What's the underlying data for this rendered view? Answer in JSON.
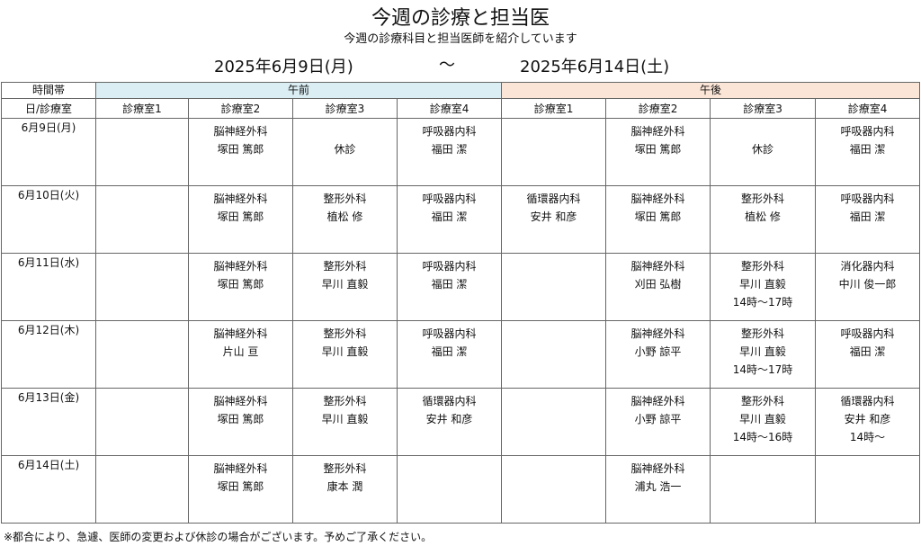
{
  "title": "今週の診療と担当医",
  "subtitle": "今週の診療科目と担当医師を紹介しています",
  "period": {
    "start": "2025年6月9日(月)",
    "separator": "～",
    "end": "2025年6月14日(土)"
  },
  "table": {
    "time_header": "時間帯",
    "am_label": "午前",
    "pm_label": "午後",
    "day_room_header": "日/診療室",
    "rooms": [
      "診療室1",
      "診療室2",
      "診療室3",
      "診療室4",
      "診療室1",
      "診療室2",
      "診療室3",
      "診療室4"
    ],
    "am_color": "#dbeef4",
    "pm_color": "#fbe5d6",
    "rows": [
      {
        "day": "6月9日(月)",
        "cells": [
          [],
          [
            "脳神経外科",
            "塚田 篤郎"
          ],
          [
            "",
            "休診"
          ],
          [
            "呼吸器内科",
            "福田 潔"
          ],
          [],
          [
            "脳神経外科",
            "塚田 篤郎"
          ],
          [
            "",
            "休診"
          ],
          [
            "呼吸器内科",
            "福田 潔"
          ]
        ]
      },
      {
        "day": "6月10日(火)",
        "cells": [
          [],
          [
            "脳神経外科",
            "塚田 篤郎"
          ],
          [
            "整形外科",
            "植松 修"
          ],
          [
            "呼吸器内科",
            "福田 潔"
          ],
          [
            "循環器内科",
            "安井 和彦"
          ],
          [
            "脳神経外科",
            "塚田 篤郎"
          ],
          [
            "整形外科",
            "植松 修"
          ],
          [
            "呼吸器内科",
            "福田 潔"
          ]
        ]
      },
      {
        "day": "6月11日(水)",
        "cells": [
          [],
          [
            "脳神経外科",
            "塚田 篤郎"
          ],
          [
            "整形外科",
            "早川 直毅"
          ],
          [
            "呼吸器内科",
            "福田 潔"
          ],
          [],
          [
            "脳神経外科",
            "刈田 弘樹"
          ],
          [
            "整形外科",
            "早川 直毅",
            "14時～17時"
          ],
          [
            "消化器内科",
            "中川 俊一郎"
          ]
        ]
      },
      {
        "day": "6月12日(木)",
        "cells": [
          [],
          [
            "脳神経外科",
            "片山 亘"
          ],
          [
            "整形外科",
            "早川 直毅"
          ],
          [
            "呼吸器内科",
            "福田 潔"
          ],
          [],
          [
            "脳神経外科",
            "小野 諒平"
          ],
          [
            "整形外科",
            "早川 直毅",
            "14時～17時"
          ],
          [
            "呼吸器内科",
            "福田 潔"
          ]
        ]
      },
      {
        "day": "6月13日(金)",
        "cells": [
          [],
          [
            "脳神経外科",
            "塚田 篤郎"
          ],
          [
            "整形外科",
            "早川 直毅"
          ],
          [
            "循環器内科",
            "安井 和彦"
          ],
          [],
          [
            "脳神経外科",
            "小野 諒平"
          ],
          [
            "整形外科",
            "早川 直毅",
            "14時～16時"
          ],
          [
            "循環器内科",
            "安井 和彦",
            "14時～"
          ]
        ]
      },
      {
        "day": "6月14日(土)",
        "cells": [
          [],
          [
            "脳神経外科",
            "塚田 篤郎"
          ],
          [
            "整形外科",
            "康本 潤"
          ],
          [],
          [],
          [
            "脳神経外科",
            "浦丸 浩一"
          ],
          [],
          []
        ]
      }
    ]
  },
  "footnote": "※都合により、急遽、医師の変更および休診の場合がございます。予めご了承ください。"
}
